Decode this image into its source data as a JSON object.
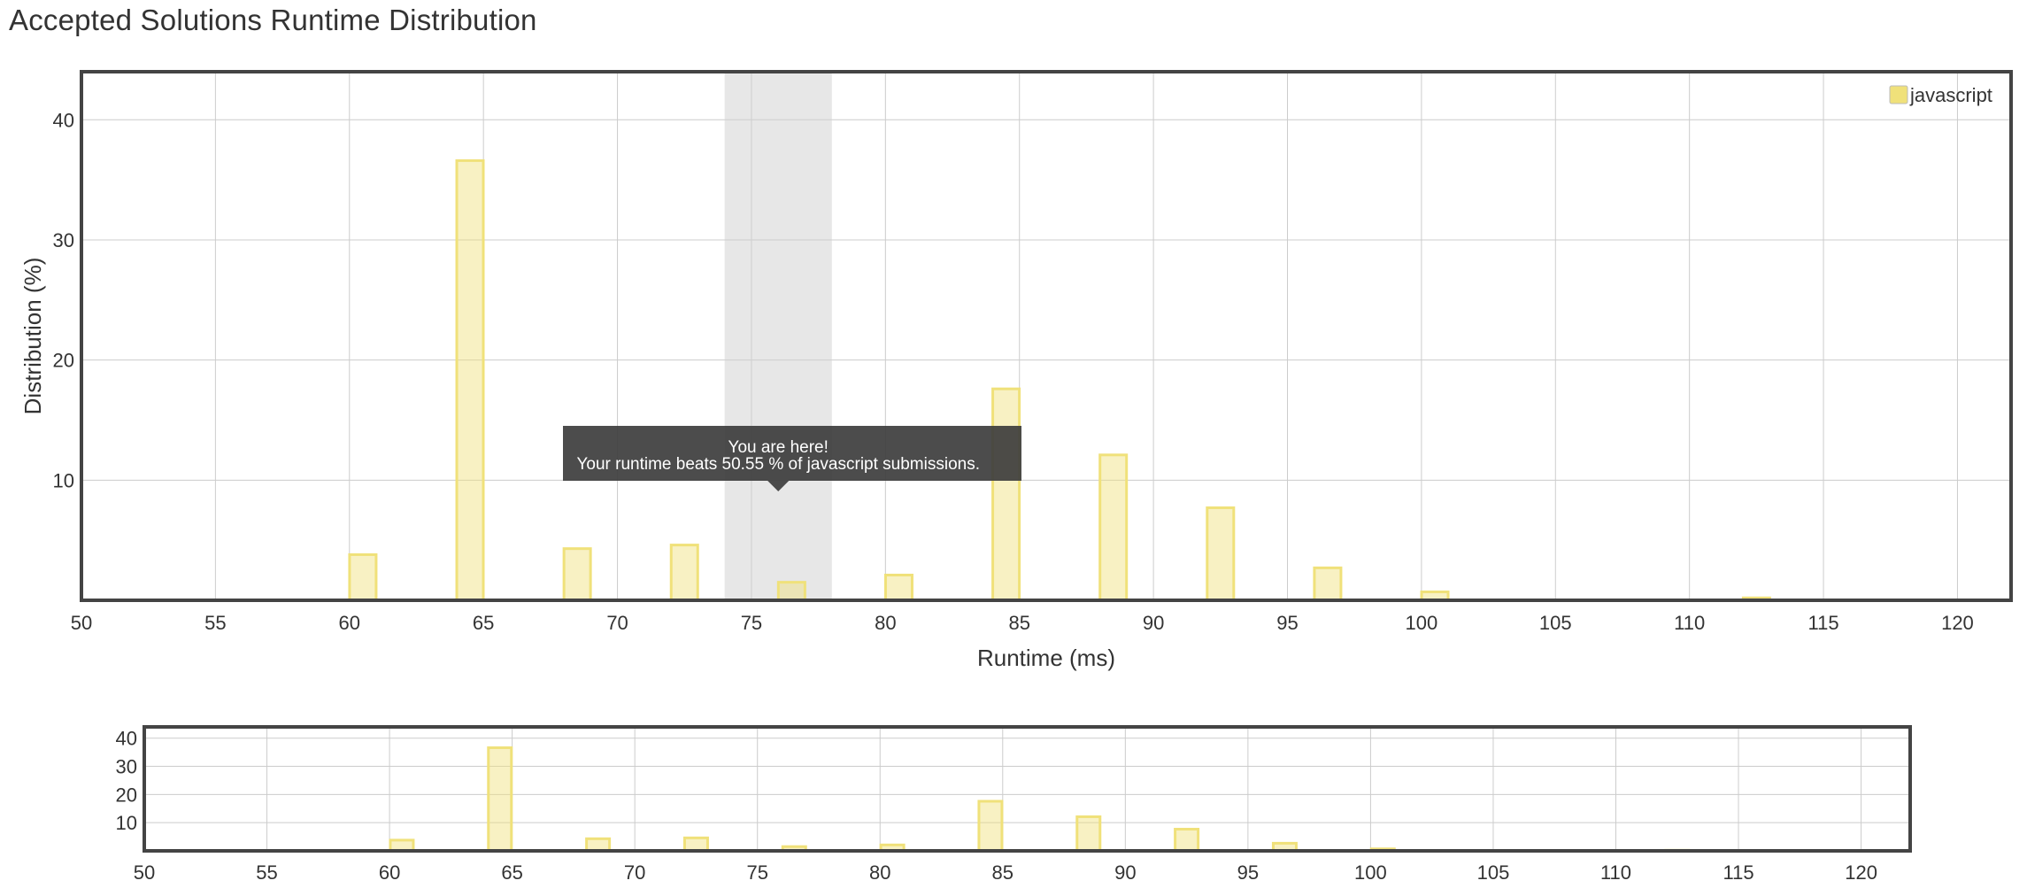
{
  "page": {
    "title": "Accepted Solutions Runtime Distribution"
  },
  "chart_data": {
    "type": "bar",
    "xlabel": "Runtime (ms)",
    "ylabel": "Distribution (%)",
    "xlim": [
      50,
      122
    ],
    "ylim": [
      0,
      44
    ],
    "xticks": [
      50,
      55,
      60,
      65,
      70,
      75,
      80,
      85,
      90,
      95,
      100,
      105,
      110,
      115,
      120
    ],
    "yticks": [
      10,
      20,
      30,
      40
    ],
    "grid": true,
    "legend_position": "top-right",
    "series": [
      {
        "name": "javascript",
        "color": "#f0e17a",
        "x": [
          60.5,
          64.5,
          68.5,
          72.5,
          76.5,
          80.5,
          84.5,
          88.5,
          92.5,
          96.5,
          100.5,
          112.5
        ],
        "values": [
          3.8,
          36.6,
          4.3,
          4.6,
          1.5,
          2.1,
          17.6,
          12.1,
          7.7,
          2.7,
          0.7,
          0.2
        ]
      }
    ],
    "highlight": {
      "x_range": [
        74,
        78
      ],
      "tooltip_title": "You are here!",
      "tooltip_text": "Your runtime beats 50.55 % of javascript submissions."
    },
    "navigator": {
      "xlim": [
        50,
        122
      ],
      "ylim": [
        0,
        44
      ],
      "xticks": [
        50,
        55,
        60,
        65,
        70,
        75,
        80,
        85,
        90,
        95,
        100,
        105,
        110,
        115,
        120
      ],
      "yticks": [
        10,
        20,
        30,
        40
      ]
    }
  }
}
